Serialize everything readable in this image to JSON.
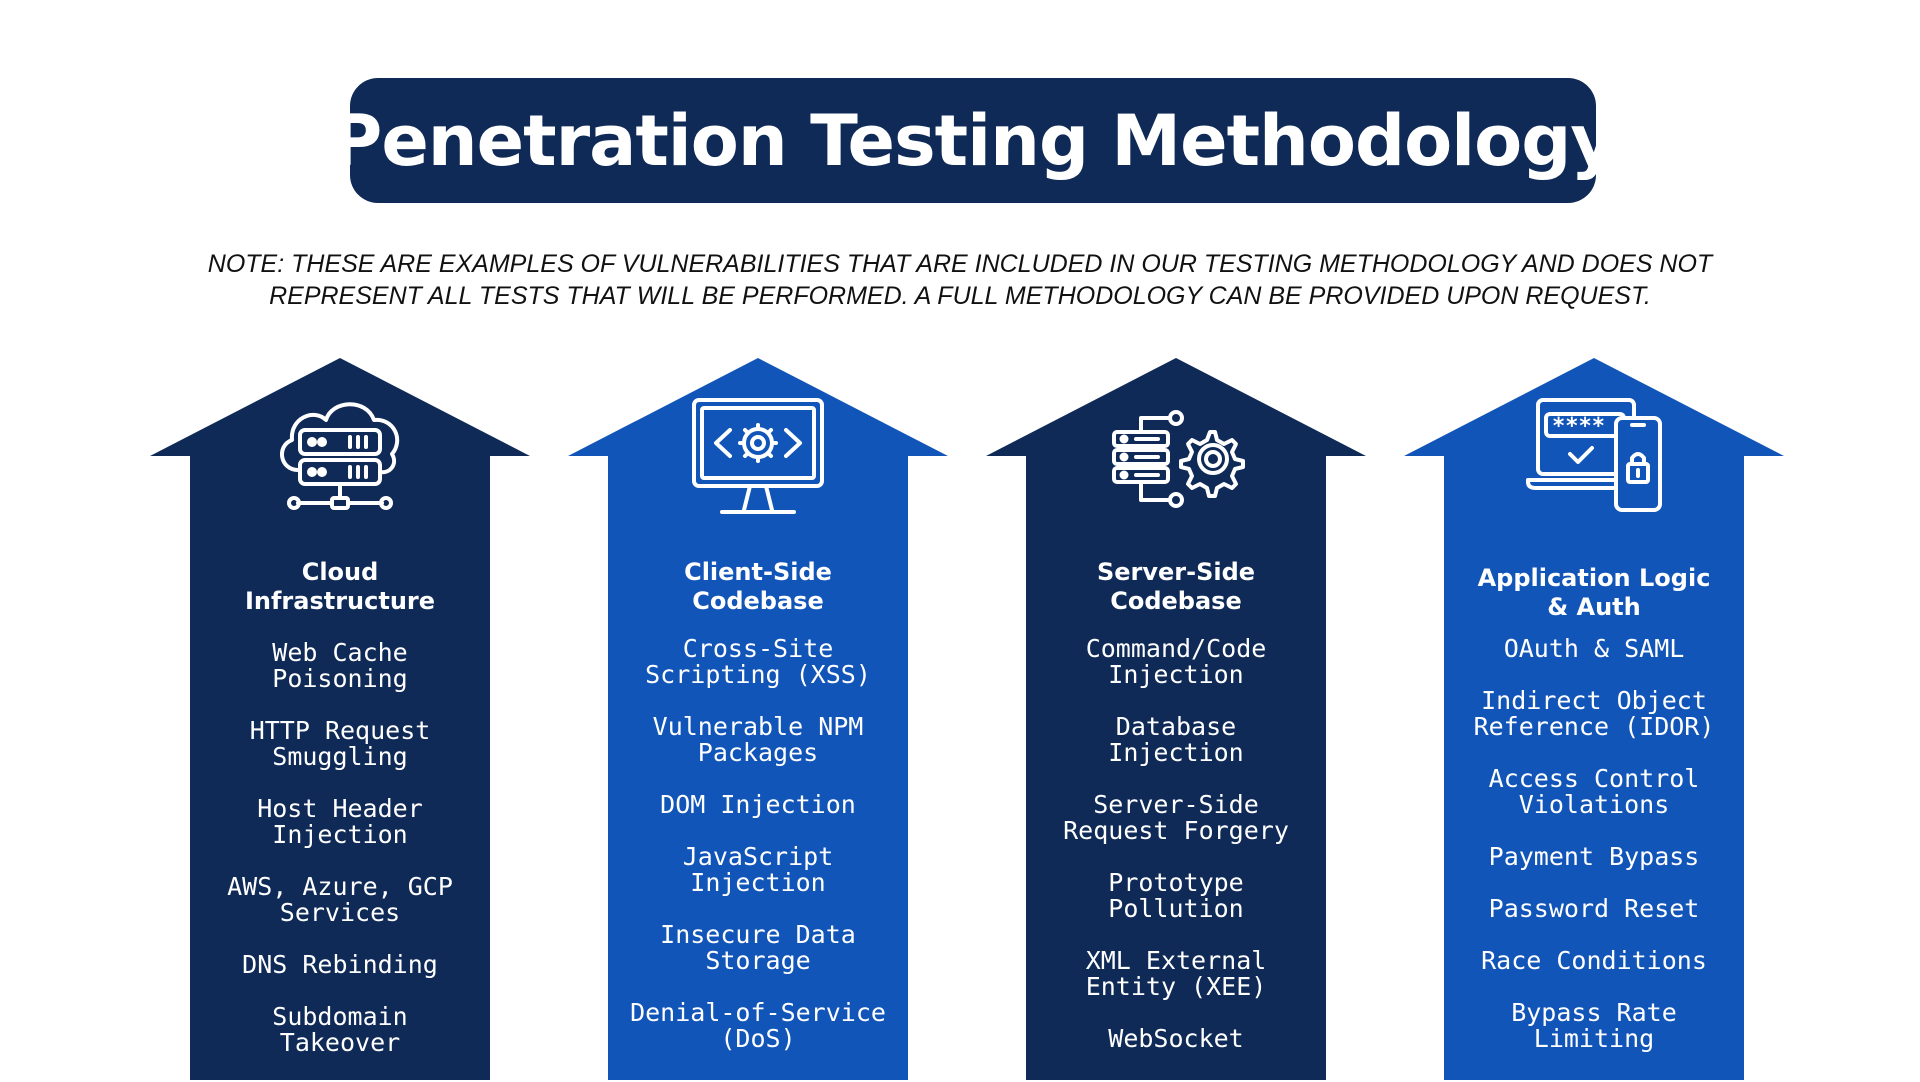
{
  "title": "Penetration Testing Methodology",
  "note": {
    "line1": "NOTE: THESE ARE EXAMPLES OF VULNERABILITIES THAT ARE INCLUDED IN OUR TESTING METHODOLOGY AND DOES NOT",
    "line2": "REPRESENT ALL TESTS THAT WILL BE PERFORMED.  A FULL METHODOLOGY CAN BE PROVIDED UPON REQUEST."
  },
  "colors": {
    "navy": "#0f2a57",
    "blue": "#1255b8",
    "text": "#ffffff"
  },
  "columns": [
    {
      "icon": "cloud-server-icon",
      "heading": "Cloud\nInfrastructure",
      "items": [
        "Web Cache\nPoisoning",
        "HTTP Request\nSmuggling",
        "Host Header\nInjection",
        "AWS, Azure, GCP\nServices",
        "DNS Rebinding",
        "Subdomain\nTakeover"
      ]
    },
    {
      "icon": "monitor-code-gear-icon",
      "heading": "Client-Side\nCodebase",
      "items": [
        "Cross-Site\nScripting (XSS)",
        "Vulnerable NPM\nPackages",
        "DOM Injection",
        "JavaScript\nInjection",
        "Insecure Data\nStorage",
        "Denial-of-Service\n(DoS)"
      ]
    },
    {
      "icon": "server-gear-icon",
      "heading": "Server-Side\nCodebase",
      "items": [
        "Command/Code\nInjection",
        "Database\nInjection",
        "Server-Side\nRequest Forgery",
        "Prototype\nPollution",
        "XML External\nEntity (XEE)",
        "WebSocket"
      ]
    },
    {
      "icon": "laptop-password-lock-icon",
      "heading": "Application Logic\n& Auth",
      "password_mask": "****",
      "items": [
        "OAuth & SAML",
        "Indirect Object\nReference (IDOR)",
        "Access Control\nViolations",
        "Payment Bypass",
        "Password Reset",
        "Race Conditions",
        "Bypass Rate\nLimiting"
      ]
    }
  ]
}
